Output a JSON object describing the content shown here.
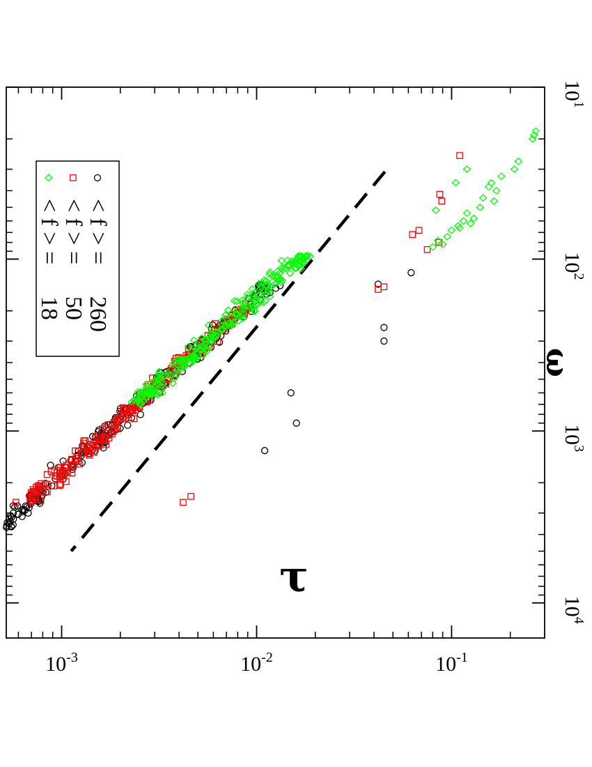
{
  "chart_data": {
    "type": "scatter",
    "xlabel": "ω",
    "ylabel": "τ",
    "x_scale": "log",
    "y_scale": "log",
    "xlim": [
      10,
      16000
    ],
    "ylim": [
      0.00052,
      0.3
    ],
    "x_ticks": [
      {
        "value": 10,
        "base": "10",
        "exp": "1"
      },
      {
        "value": 100,
        "base": "10",
        "exp": "2"
      },
      {
        "value": 1000,
        "base": "10",
        "exp": "3"
      },
      {
        "value": 10000,
        "base": "10",
        "exp": "4"
      }
    ],
    "y_ticks": [
      {
        "value": 0.1,
        "base": "10",
        "exp": "-1"
      },
      {
        "value": 0.01,
        "base": "10",
        "exp": "-2"
      },
      {
        "value": 0.001,
        "base": "10",
        "exp": "-3"
      }
    ],
    "legend_position": "top-left",
    "series": [
      {
        "name": "< f > =   260",
        "legend_lhs": "< f > =",
        "legend_value": "260",
        "marker": "circle",
        "color": "#000000",
        "x_range": [
          140,
          12500
        ],
        "trend": {
          "a": 1.5,
          "b": -0.98
        },
        "noise": 0.045,
        "count": 380,
        "outliers": [
          [
            140,
            0.042
          ],
          [
            250,
            0.045
          ],
          [
            300,
            0.045
          ],
          [
            120,
            0.062
          ],
          [
            600,
            0.015
          ],
          [
            1300,
            0.011
          ],
          [
            900,
            0.016
          ]
        ]
      },
      {
        "name": "< f > =   50",
        "legend_lhs": "< f > =",
        "legend_value": "50",
        "marker": "square",
        "color": "#ff0000",
        "x_range": [
          180,
          2600
        ],
        "trend": {
          "a": 1.5,
          "b": -0.98
        },
        "noise": 0.04,
        "count": 220,
        "outliers": [
          [
            25,
            0.11
          ],
          [
            42,
            0.087
          ],
          [
            46,
            0.089
          ],
          [
            68,
            0.068
          ],
          [
            72,
            0.063
          ],
          [
            88,
            0.075
          ],
          [
            145,
            0.045
          ],
          [
            150,
            0.042
          ],
          [
            80,
            0.086
          ],
          [
            2400,
            0.0046
          ],
          [
            2600,
            0.0042
          ]
        ]
      },
      {
        "name": "< f > =   18",
        "legend_lhs": "< f > =",
        "legend_value": "18",
        "marker": "diamond",
        "color": "#00ff00",
        "x_range": [
          95,
          700
        ],
        "trend": {
          "a": 1.5,
          "b": -0.98
        },
        "noise": 0.05,
        "count": 260,
        "outliers": [
          [
            18,
            0.27
          ],
          [
            19,
            0.265
          ],
          [
            20,
            0.26
          ],
          [
            27,
            0.22
          ],
          [
            30,
            0.21
          ],
          [
            33,
            0.18
          ],
          [
            36,
            0.16
          ],
          [
            38,
            0.155
          ],
          [
            40,
            0.17
          ],
          [
            44,
            0.145
          ],
          [
            46,
            0.165
          ],
          [
            50,
            0.14
          ],
          [
            54,
            0.12
          ],
          [
            58,
            0.13
          ],
          [
            60,
            0.115
          ],
          [
            62,
            0.125
          ],
          [
            64,
            0.108
          ],
          [
            66,
            0.11
          ],
          [
            68,
            0.1
          ],
          [
            74,
            0.095
          ],
          [
            78,
            0.085
          ],
          [
            82,
            0.09
          ],
          [
            85,
            0.08
          ],
          [
            30,
            0.12
          ],
          [
            36,
            0.105
          ],
          [
            52,
            0.083
          ]
        ]
      }
    ],
    "reference_line": {
      "style": "dashed",
      "color": "#000000",
      "points": [
        [
          31,
          0.0455
        ],
        [
          5000,
          0.00112
        ]
      ]
    }
  }
}
